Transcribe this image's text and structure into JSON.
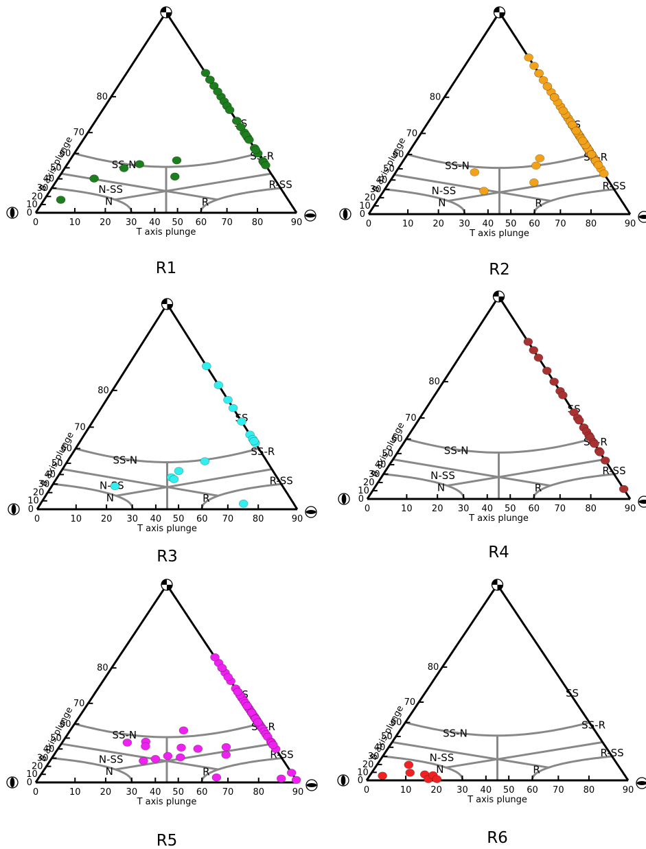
{
  "figure": {
    "axis_labels": {
      "x": "T axis plunge",
      "y": "B axis plunge"
    },
    "region_labels": [
      "SS",
      "SS-N",
      "SS-R",
      "N-SS",
      "R-SS",
      "N",
      "R"
    ],
    "left_ticks": [
      "0",
      "10",
      "20",
      "30",
      "40",
      "50",
      "60",
      "70",
      "80",
      "90"
    ],
    "bottom_ticks": [
      "0",
      "10",
      "20",
      "30",
      "40",
      "50",
      "60",
      "70",
      "80",
      "90"
    ],
    "icons": [
      "strike-slip-beachball-icon",
      "normal-beachball-icon",
      "reverse-beachball-icon"
    ],
    "colors": {
      "frame": "#000000",
      "boundaries": "#888888"
    }
  },
  "chart_data": [
    {
      "type": "scatter",
      "title": "R1",
      "color": "#1e7d1e",
      "points": [
        [
          18,
          78
        ],
        [
          22,
          80
        ],
        [
          25,
          82
        ],
        [
          27,
          83
        ],
        [
          29,
          84
        ],
        [
          31,
          83
        ],
        [
          34,
          81
        ],
        [
          38,
          79
        ],
        [
          30,
          78
        ],
        [
          28,
          74
        ],
        [
          25,
          72
        ],
        [
          22,
          70
        ],
        [
          32,
          72
        ],
        [
          36,
          68
        ],
        [
          41,
          69
        ],
        [
          44,
          67
        ],
        [
          34,
          60
        ],
        [
          45,
          63
        ],
        [
          62,
          62
        ],
        [
          14,
          61
        ],
        [
          12,
          57
        ],
        [
          28,
          52
        ],
        [
          36,
          55
        ],
        [
          42,
          54
        ],
        [
          47,
          52
        ],
        [
          8,
          45
        ],
        [
          4,
          17
        ],
        [
          20,
          64
        ],
        [
          35,
          74
        ],
        [
          24,
          77
        ]
      ]
    },
    {
      "type": "scatter",
      "title": "R2",
      "color": "#f2a21a",
      "points": [
        [
          21,
          69
        ],
        [
          24,
          71
        ],
        [
          26,
          73
        ],
        [
          29,
          75
        ],
        [
          31,
          77
        ],
        [
          33,
          78
        ],
        [
          35,
          80
        ],
        [
          37,
          81
        ],
        [
          39,
          82
        ],
        [
          41,
          83
        ],
        [
          43,
          84
        ],
        [
          45,
          85
        ],
        [
          47,
          86
        ],
        [
          49,
          84
        ],
        [
          51,
          82
        ],
        [
          53,
          80
        ],
        [
          55,
          78
        ],
        [
          57,
          76
        ],
        [
          59,
          74
        ],
        [
          61,
          72
        ],
        [
          63,
          70
        ],
        [
          65,
          68
        ],
        [
          67,
          66
        ],
        [
          70,
          64
        ],
        [
          73,
          62
        ],
        [
          76,
          60
        ],
        [
          30,
          63
        ],
        [
          33,
          65
        ],
        [
          36,
          67
        ],
        [
          39,
          69
        ],
        [
          42,
          71
        ],
        [
          45,
          73
        ],
        [
          48,
          75
        ],
        [
          51,
          73
        ],
        [
          54,
          71
        ],
        [
          57,
          69
        ],
        [
          60,
          67
        ],
        [
          47,
          66
        ],
        [
          50,
          64
        ],
        [
          44,
          62
        ],
        [
          41,
          60
        ],
        [
          38,
          58
        ],
        [
          35,
          56
        ],
        [
          53,
          62
        ],
        [
          56,
          60
        ],
        [
          59,
          58
        ],
        [
          62,
          56
        ],
        [
          65,
          54
        ],
        [
          50,
          56
        ],
        [
          47,
          54
        ],
        [
          24,
          64
        ],
        [
          27,
          60
        ],
        [
          17,
          56
        ],
        [
          35,
          64
        ],
        [
          40,
          76
        ],
        [
          44,
          79
        ],
        [
          48,
          80
        ],
        [
          52,
          77
        ],
        [
          56,
          74
        ],
        [
          29,
          70
        ],
        [
          27,
          66
        ],
        [
          60,
          63
        ],
        [
          66,
          60
        ],
        [
          54,
          50
        ],
        [
          58,
          46
        ],
        [
          38,
          46
        ],
        [
          29,
          37
        ],
        [
          72,
          56
        ],
        [
          45,
          69
        ],
        [
          49,
          70
        ],
        [
          36,
          73
        ],
        [
          62,
          71
        ],
        [
          68,
          68
        ],
        [
          42,
          65
        ],
        [
          46,
          60
        ],
        [
          70,
          60
        ],
        [
          43,
          53
        ],
        [
          32,
          67
        ]
      ]
    },
    {
      "type": "scatter",
      "title": "R3",
      "color": "#33eeee",
      "points": [
        [
          36,
          84
        ],
        [
          42,
          81
        ],
        [
          42,
          78
        ],
        [
          38,
          76
        ],
        [
          47,
          72
        ],
        [
          35,
          67
        ],
        [
          32,
          65
        ],
        [
          47,
          63
        ],
        [
          39,
          64
        ],
        [
          28,
          59
        ],
        [
          28,
          53
        ],
        [
          30,
          47
        ],
        [
          32,
          45
        ],
        [
          17,
          34
        ],
        [
          74,
          8
        ]
      ]
    },
    {
      "type": "scatter",
      "title": "R4",
      "color": "#a83232",
      "points": [
        [
          45,
          86
        ],
        [
          48,
          85
        ],
        [
          52,
          84
        ],
        [
          42,
          82
        ],
        [
          36,
          80
        ],
        [
          50,
          78
        ],
        [
          38,
          77
        ],
        [
          28,
          72
        ],
        [
          32,
          70
        ],
        [
          37,
          69
        ],
        [
          28,
          66
        ],
        [
          41,
          66
        ],
        [
          46,
          64
        ],
        [
          40,
          62
        ],
        [
          46,
          61
        ],
        [
          54,
          58
        ],
        [
          62,
          57
        ],
        [
          60,
          52
        ],
        [
          57,
          44
        ],
        [
          56,
          51
        ],
        [
          86,
          12
        ]
      ]
    },
    {
      "type": "scatter",
      "title": "R5",
      "color": "#ee22ee",
      "points": [
        [
          26,
          77
        ],
        [
          30,
          79
        ],
        [
          34,
          80
        ],
        [
          38,
          81
        ],
        [
          42,
          82
        ],
        [
          46,
          80
        ],
        [
          50,
          78
        ],
        [
          54,
          75
        ],
        [
          58,
          72
        ],
        [
          35,
          74
        ],
        [
          39,
          72
        ],
        [
          42,
          71
        ],
        [
          47,
          70
        ],
        [
          52,
          68
        ],
        [
          57,
          66
        ],
        [
          62,
          64
        ],
        [
          29,
          69
        ],
        [
          31,
          68
        ],
        [
          34,
          67
        ],
        [
          38,
          66
        ],
        [
          43,
          65
        ],
        [
          48,
          64
        ],
        [
          53,
          62
        ],
        [
          58,
          60
        ],
        [
          63,
          58
        ],
        [
          24,
          66
        ],
        [
          21,
          64
        ],
        [
          27,
          63
        ],
        [
          32,
          61
        ],
        [
          37,
          59
        ],
        [
          42,
          58
        ],
        [
          47,
          57
        ],
        [
          52,
          55
        ],
        [
          57,
          53
        ],
        [
          62,
          51
        ],
        [
          18,
          56
        ],
        [
          14,
          54
        ],
        [
          20,
          52
        ],
        [
          30,
          51
        ],
        [
          35,
          49
        ],
        [
          40,
          48
        ],
        [
          45,
          47
        ],
        [
          50,
          46
        ],
        [
          55,
          44
        ],
        [
          32,
          42
        ],
        [
          30,
          38
        ],
        [
          27,
          35
        ],
        [
          37,
          40
        ],
        [
          47,
          40
        ],
        [
          56,
          40
        ],
        [
          34,
          63
        ],
        [
          40,
          63
        ],
        [
          60,
          44
        ],
        [
          65,
          8
        ],
        [
          79,
          12
        ],
        [
          84,
          5
        ],
        [
          88,
          3
        ],
        [
          28,
          73
        ],
        [
          44,
          74
        ],
        [
          53,
          69
        ],
        [
          41,
          61
        ]
      ]
    },
    {
      "type": "scatter",
      "title": "R6",
      "color": "#ee2222",
      "points": [
        [
          8,
          22
        ],
        [
          10,
          11
        ],
        [
          15,
          9
        ],
        [
          17,
          2
        ],
        [
          18,
          8
        ],
        [
          20,
          2
        ],
        [
          3,
          6
        ]
      ]
    }
  ]
}
